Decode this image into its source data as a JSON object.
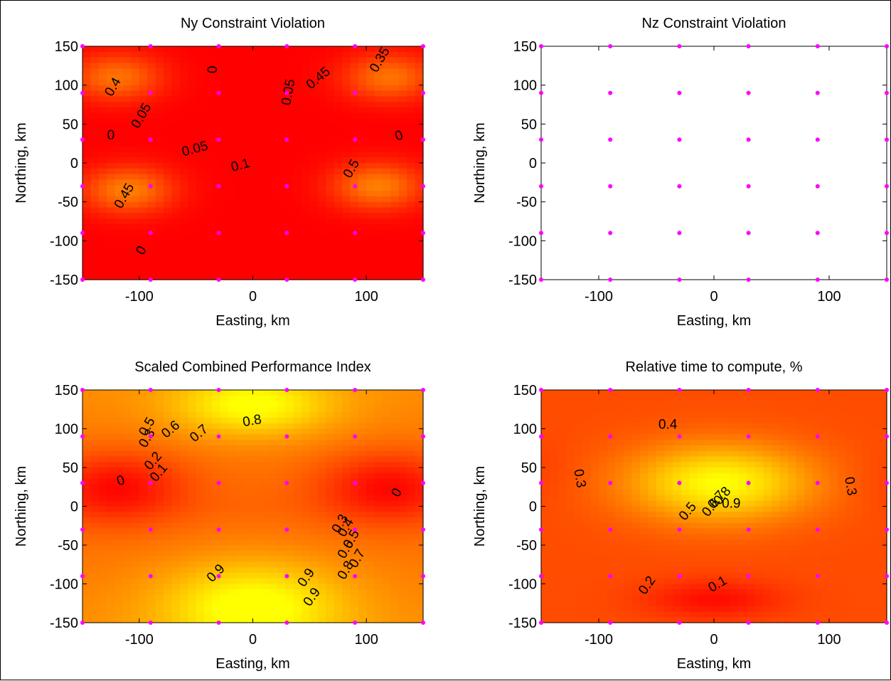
{
  "chart_data": [
    {
      "type": "heatmap",
      "subtype": "filled-contour",
      "title": "Ny Constraint Violation",
      "xlabel": "Easting, km",
      "ylabel": "Northing, km",
      "xlim": [
        -150,
        150
      ],
      "ylim": [
        -150,
        150
      ],
      "xticks": [
        "-100",
        "0",
        "100"
      ],
      "xtick_values": [
        -100,
        0,
        100
      ],
      "yticks": [
        "150",
        "100",
        "50",
        "0",
        "-50",
        "-100",
        "-150"
      ],
      "ytick_values": [
        150,
        100,
        50,
        0,
        -50,
        -100,
        -150
      ],
      "colormap": "autumn",
      "contour_labels": [
        "0",
        "0",
        "0",
        "0",
        "0.05",
        "0.05",
        "0.05",
        "0.1",
        "0.35",
        "0.4",
        "0.45",
        "0.45",
        "0.5"
      ],
      "peaks": [
        {
          "x": -110,
          "y": -35,
          "value": 0.5
        },
        {
          "x": 110,
          "y": -30,
          "value": 0.5
        },
        {
          "x": -120,
          "y": 110,
          "value": 0.45
        },
        {
          "x": 120,
          "y": 110,
          "value": 0.45
        }
      ],
      "sample_points": {
        "x": [
          -150,
          -90,
          -30,
          30,
          90,
          150
        ],
        "y": [
          -150,
          -90,
          -30,
          30,
          90,
          150
        ],
        "color": "#ff00ff"
      }
    },
    {
      "type": "heatmap",
      "subtype": "filled-contour",
      "title": "Nz Constraint Violation",
      "xlabel": "Easting, km",
      "ylabel": "Northing, km",
      "xlim": [
        -150,
        150
      ],
      "ylim": [
        -150,
        150
      ],
      "xticks": [
        "-100",
        "0",
        "100"
      ],
      "xtick_values": [
        -100,
        0,
        100
      ],
      "yticks": [
        "150",
        "100",
        "50",
        "0",
        "-50",
        "-100",
        "-150"
      ],
      "ytick_values": [
        150,
        100,
        50,
        0,
        -50,
        -100,
        -150
      ],
      "contour_labels": [],
      "peaks": [],
      "sample_points": {
        "x": [
          -150,
          -90,
          -30,
          30,
          90,
          150
        ],
        "y": [
          -150,
          -90,
          -30,
          30,
          90,
          150
        ],
        "color": "#ff00ff"
      }
    },
    {
      "type": "heatmap",
      "subtype": "filled-contour",
      "title": "Scaled Combined Performance Index",
      "xlabel": "Easting, km",
      "ylabel": "Northing, km",
      "xlim": [
        -150,
        150
      ],
      "ylim": [
        -150,
        150
      ],
      "xticks": [
        "-100",
        "0",
        "100"
      ],
      "xtick_values": [
        -100,
        0,
        100
      ],
      "yticks": [
        "150",
        "100",
        "50",
        "0",
        "-50",
        "-100",
        "-150"
      ],
      "ytick_values": [
        150,
        100,
        50,
        0,
        -50,
        -100,
        -150
      ],
      "colormap": "autumn",
      "contour_labels": [
        "0",
        "0",
        "0.1",
        "0.2",
        "0.3",
        "0.5",
        "0.6",
        "0.7",
        "0.8",
        "0.9",
        "0.9",
        "0.8",
        "0.7",
        "0.6",
        "0.5",
        "0.4",
        "0.3",
        "0.9"
      ],
      "peaks": [
        {
          "x": 0,
          "y": 130,
          "value": 0.95
        },
        {
          "x": 0,
          "y": -130,
          "value": 1.0
        },
        {
          "x": -120,
          "y": 30,
          "value": 0.0
        },
        {
          "x": 120,
          "y": 25,
          "value": 0.0
        }
      ],
      "sample_points": {
        "x": [
          -150,
          -90,
          -30,
          30,
          90,
          150
        ],
        "y": [
          -150,
          -90,
          -30,
          30,
          90,
          150
        ],
        "color": "#ff00ff"
      }
    },
    {
      "type": "heatmap",
      "subtype": "filled-contour",
      "title": "Relative time to compute, %",
      "xlabel": "Easting, km",
      "ylabel": "Northing, km",
      "xlim": [
        -150,
        150
      ],
      "ylim": [
        -150,
        150
      ],
      "xticks": [
        "-100",
        "0",
        "100"
      ],
      "xtick_values": [
        -100,
        0,
        100
      ],
      "yticks": [
        "150",
        "100",
        "50",
        "0",
        "-50",
        "-100",
        "-150"
      ],
      "ytick_values": [
        150,
        100,
        50,
        0,
        -50,
        -100,
        -150
      ],
      "colormap": "autumn",
      "contour_labels": [
        "0.4",
        "0.3",
        "0.3",
        "0.5",
        "0.6",
        "0.7",
        "0.8",
        "0.9",
        "0.2",
        "0.1"
      ],
      "peaks": [
        {
          "x": 5,
          "y": 30,
          "value": 1.0
        },
        {
          "x": 0,
          "y": -120,
          "value": 0.05
        },
        {
          "x": -150,
          "y": 50,
          "value": 0.28
        },
        {
          "x": 150,
          "y": 30,
          "value": 0.28
        }
      ],
      "sample_points": {
        "x": [
          -150,
          -90,
          -30,
          30,
          90,
          150
        ],
        "y": [
          -150,
          -90,
          -30,
          30,
          90,
          150
        ],
        "color": "#ff00ff"
      }
    }
  ]
}
